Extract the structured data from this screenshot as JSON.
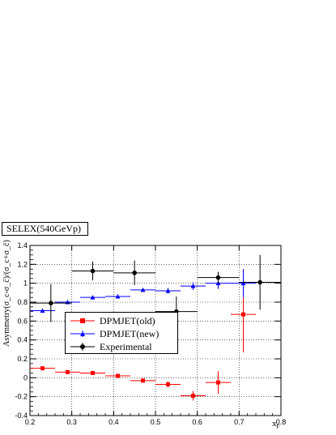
{
  "title": "SELEX(540GeVp)",
  "ylabel": "Asymmetry(σ_c-σ_c̄)/(σ_c+σ_c̄)",
  "xlabel_main": "x",
  "xlabel_sub": "F",
  "colors": {
    "old": "#ff0000",
    "new": "#0000ff",
    "exp": "#000000",
    "grid": "#000000"
  },
  "chart_data": {
    "type": "scatter",
    "title": "SELEX(540GeVp)",
    "xlabel": "xF",
    "ylabel": "Asymmetry(σc-σc̄/σc+σc̄)",
    "xlim": [
      0.2,
      0.8
    ],
    "ylim": [
      -0.4,
      1.4
    ],
    "xticks": [
      "0.2",
      "0.3",
      "0.4",
      "0.5",
      "0.6",
      "0.7",
      "0.8"
    ],
    "yticks": [
      "-0.4",
      "-0.2",
      "0",
      "0.2",
      "0.4",
      "0.6",
      "0.8",
      "1",
      "1.2",
      "1.4"
    ],
    "grid": true,
    "legend_position": "bottom-left",
    "series": [
      {
        "name": "DPMJET(old)",
        "marker": "square",
        "color": "#ff0000",
        "x": [
          0.23,
          0.29,
          0.35,
          0.41,
          0.47,
          0.53,
          0.59,
          0.65,
          0.71
        ],
        "y": [
          0.1,
          0.06,
          0.05,
          0.02,
          -0.03,
          -0.07,
          -0.19,
          -0.05,
          0.67
        ],
        "xerr": [
          0.03,
          0.03,
          0.03,
          0.03,
          0.03,
          0.03,
          0.03,
          0.03,
          0.03
        ],
        "yerr": [
          0.01,
          0.01,
          0.01,
          0.01,
          0.02,
          0.03,
          0.05,
          0.12,
          0.4
        ]
      },
      {
        "name": "DPMJET(new)",
        "marker": "triangle",
        "color": "#0000ff",
        "x": [
          0.23,
          0.29,
          0.35,
          0.41,
          0.47,
          0.53,
          0.59,
          0.65,
          0.71
        ],
        "y": [
          0.71,
          0.8,
          0.85,
          0.86,
          0.93,
          0.92,
          0.97,
          1.0,
          1.0
        ],
        "xerr": [
          0.03,
          0.03,
          0.03,
          0.03,
          0.03,
          0.03,
          0.03,
          0.03,
          0.03
        ],
        "yerr": [
          0.01,
          0.01,
          0.01,
          0.01,
          0.02,
          0.03,
          0.04,
          0.06,
          0.15
        ]
      },
      {
        "name": "Experimental",
        "marker": "circle",
        "color": "#000000",
        "x": [
          0.25,
          0.35,
          0.45,
          0.55,
          0.65,
          0.75
        ],
        "y": [
          0.79,
          1.13,
          1.11,
          0.7,
          1.06,
          1.01
        ],
        "xerr": [
          0.05,
          0.05,
          0.05,
          0.05,
          0.05,
          0.05
        ],
        "yerr": [
          0.2,
          0.1,
          0.13,
          0.16,
          0.06,
          0.29
        ]
      }
    ]
  }
}
